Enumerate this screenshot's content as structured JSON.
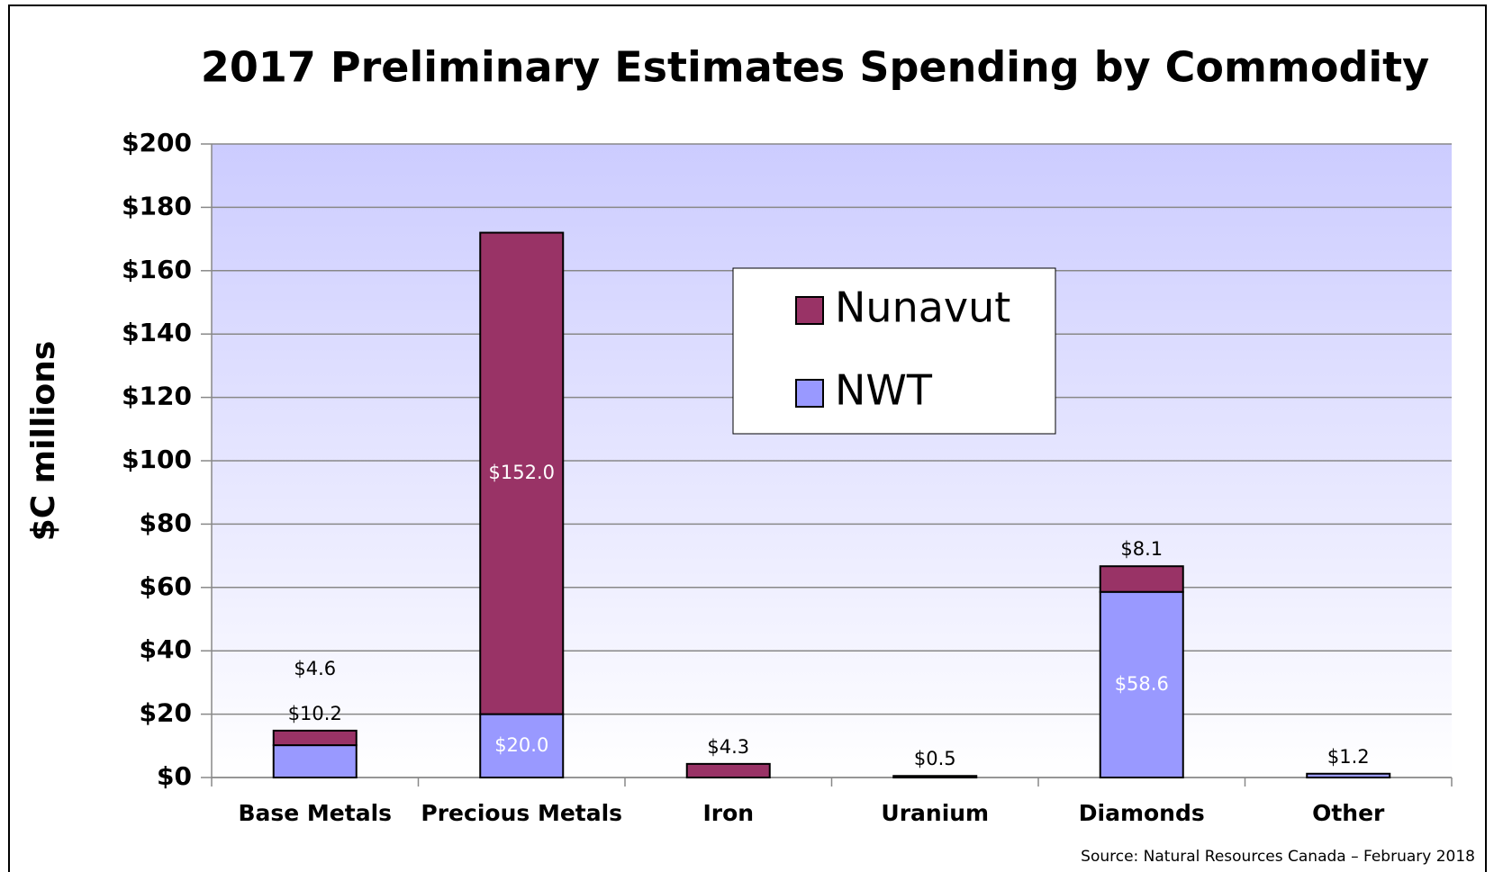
{
  "chart_data": {
    "type": "stacked_bar",
    "title": "2017 Preliminary Estimates Spending by Commodity",
    "y_label": "$C millions",
    "source": "Source: Natural Resources Canada – February 2018",
    "categories": [
      "Base Metals",
      "Precious Metals",
      "Iron",
      "Uranium",
      "Diamonds",
      "Other"
    ],
    "series": [
      {
        "name": "NWT",
        "color": "#9999ff",
        "values": [
          10.2,
          20.0,
          null,
          null,
          58.6,
          1.2
        ],
        "value_labels": [
          "$10.2",
          "$20.0",
          null,
          null,
          "$58.6",
          "$1.2"
        ]
      },
      {
        "name": "Nunavut",
        "color": "#993366",
        "values": [
          4.6,
          152.0,
          4.3,
          0.5,
          8.1,
          null
        ],
        "value_labels": [
          "$4.6",
          "$152.0",
          "$4.3",
          "$0.5",
          "$8.1",
          null
        ]
      }
    ],
    "ylim": [
      0,
      200
    ],
    "yticks": [
      {
        "value": 0,
        "label": "$0"
      },
      {
        "value": 20,
        "label": "$20"
      },
      {
        "value": 40,
        "label": "$40"
      },
      {
        "value": 60,
        "label": "$60"
      },
      {
        "value": 80,
        "label": "$80"
      },
      {
        "value": 100,
        "label": "$100"
      },
      {
        "value": 120,
        "label": "$120"
      },
      {
        "value": 140,
        "label": "$140"
      },
      {
        "value": 160,
        "label": "$160"
      },
      {
        "value": 180,
        "label": "$180"
      },
      {
        "value": 200,
        "label": "$200"
      }
    ],
    "grid": true,
    "legend": "top-center"
  }
}
